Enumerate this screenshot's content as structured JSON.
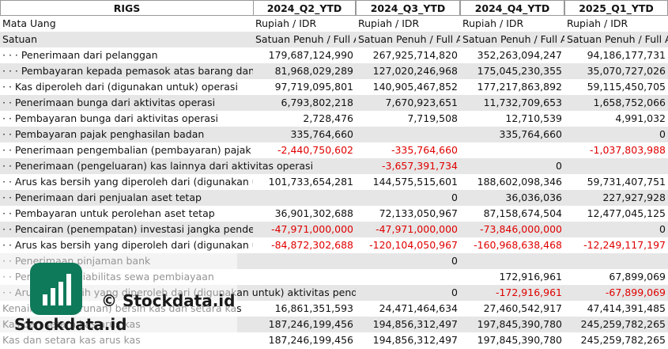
{
  "table": {
    "columns": [
      "RIGS",
      "2024_Q2_YTD",
      "2024_Q3_YTD",
      "2024_Q4_YTD",
      "2025_Q1_YTD"
    ],
    "rows": [
      [
        "Mata Uang",
        "Rupiah / IDR",
        "Rupiah / IDR",
        "Rupiah / IDR",
        "Rupiah / IDR"
      ],
      [
        "Satuan",
        "Satuan Penuh / Full A",
        "Satuan Penuh / Full A",
        "Satuan Penuh / Full A",
        "Satuan Penuh / Full A"
      ],
      [
        "· · · Penerimaan dari pelanggan",
        "179,687,124,990",
        "267,925,714,820",
        "352,263,094,247",
        "94,186,177,731"
      ],
      [
        "· · · Pembayaran kepada pemasok atas barang dan ja",
        "81,968,029,289",
        "127,020,246,968",
        "175,045,230,355",
        "35,070,727,026"
      ],
      [
        "· · Kas diperoleh dari (digunakan untuk) operasi",
        "97,719,095,801",
        "140,905,467,852",
        "177,217,863,892",
        "59,115,450,705"
      ],
      [
        "· · Penerimaan bunga dari aktivitas operasi",
        "6,793,802,218",
        "7,670,923,651",
        "11,732,709,653",
        "1,658,752,066"
      ],
      [
        "· · Pembayaran bunga dari aktivitas operasi",
        "2,728,476",
        "7,719,508",
        "12,710,539",
        "4,991,032"
      ],
      [
        "· · Pembayaran pajak penghasilan badan",
        "335,764,660",
        null,
        "335,764,660",
        "0"
      ],
      [
        "· · Penerimaan pengembalian (pembayaran) pajak p",
        "-2,440,750,602",
        "-335,764,660",
        null,
        "-1,037,803,988"
      ],
      [
        "· · Penerimaan (pengeluaran) kas lainnya dari aktivitas operasi",
        null,
        "-3,657,391,734",
        "0",
        null
      ],
      [
        "· · Arus kas bersih yang diperoleh dari (digunakan ur",
        "101,733,654,281",
        "144,575,515,601",
        "188,602,098,346",
        "59,731,407,751"
      ],
      [
        "· · Penerimaan dari penjualan aset tetap",
        null,
        "0",
        "36,036,036",
        "227,927,928"
      ],
      [
        "· · Pembayaran untuk perolehan aset tetap",
        "36,901,302,688",
        "72,133,050,967",
        "87,158,674,504",
        "12,477,045,125"
      ],
      [
        "· · Pencairan (penempatan) investasi jangka pendek",
        "-47,971,000,000",
        "-47,971,000,000",
        "-73,846,000,000",
        "0"
      ],
      [
        "· · Arus kas bersih yang diperoleh dari (digunakan ur",
        "-84,872,302,688",
        "-120,104,050,967",
        "-160,968,638,468",
        "-12,249,117,197"
      ],
      [
        "· · Penerimaan pinjaman bank",
        null,
        "0",
        null,
        null
      ],
      [
        "· · Pembayaran liabilitas sewa pembiayaan",
        null,
        null,
        "172,916,961",
        "67,899,069"
      ],
      [
        "· · Arus kas bersih yang diperoleh dari (digunakan untuk) aktivitas pendan",
        null,
        "0",
        "-172,916,961",
        "-67,899,069"
      ],
      [
        "Kenaikan (penurunan) bersih kas dan setara kas",
        "16,861,351,593",
        "24,471,464,634",
        "27,460,542,917",
        "47,414,391,485"
      ],
      [
        "Kas dan setara kas arus kas",
        "187,246,199,456",
        "194,856,312,497",
        "197,845,390,780",
        "245,259,782,265"
      ],
      [
        "Kas dan setara kas arus kas",
        "187,246,199,456",
        "194,856,312,497",
        "197,845,390,780",
        "245,259,782,265"
      ]
    ]
  },
  "watermark": {
    "center": "© Stockdata.id",
    "corner": "Stockdata.id"
  }
}
